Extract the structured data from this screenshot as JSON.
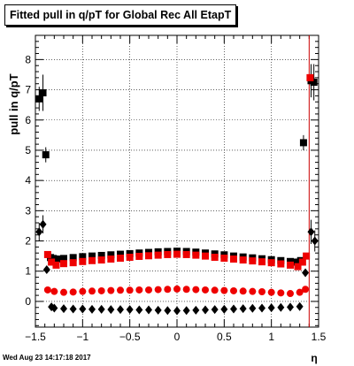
{
  "chart_data": {
    "type": "scatter",
    "title": "Fitted pull in q/pT for Global Rec All EtapT",
    "xlabel": "η",
    "ylabel": "pull in q/pT",
    "xlim": [
      -1.5,
      1.5
    ],
    "ylim": [
      -0.85,
      8.8
    ],
    "grid": true,
    "x_ticks": [
      -1.5,
      -1,
      -0.5,
      0,
      0.5,
      1,
      1.5
    ],
    "x_tick_labels": [
      "−1.5",
      "−1",
      "−0.5",
      "0",
      "0.5",
      "1",
      "1.5"
    ],
    "y_ticks": [
      0,
      1,
      2,
      3,
      4,
      5,
      6,
      7,
      8
    ],
    "y_tick_labels": [
      "0",
      "1",
      "2",
      "3",
      "4",
      "5",
      "6",
      "7",
      "8"
    ],
    "vertical_line": {
      "x": 1.4,
      "color": "#cc0000"
    },
    "series": [
      {
        "marker": "square",
        "color": "#000000",
        "points": [
          [
            -1.46,
            6.7
          ],
          [
            -1.42,
            6.9
          ],
          [
            -1.39,
            4.85
          ],
          [
            -1.34,
            1.45
          ],
          [
            -1.31,
            1.42
          ],
          [
            -1.27,
            1.4
          ],
          [
            -1.2,
            1.42
          ],
          [
            -1.1,
            1.45
          ],
          [
            -1.0,
            1.48
          ],
          [
            -0.9,
            1.5
          ],
          [
            -0.8,
            1.52
          ],
          [
            -0.7,
            1.54
          ],
          [
            -0.6,
            1.56
          ],
          [
            -0.5,
            1.58
          ],
          [
            -0.4,
            1.6
          ],
          [
            -0.3,
            1.62
          ],
          [
            -0.2,
            1.64
          ],
          [
            -0.1,
            1.65
          ],
          [
            0.0,
            1.66
          ],
          [
            0.1,
            1.65
          ],
          [
            0.2,
            1.63
          ],
          [
            0.3,
            1.6
          ],
          [
            0.4,
            1.57
          ],
          [
            0.5,
            1.54
          ],
          [
            0.6,
            1.5
          ],
          [
            0.7,
            1.47
          ],
          [
            0.8,
            1.44
          ],
          [
            0.9,
            1.41
          ],
          [
            1.0,
            1.38
          ],
          [
            1.1,
            1.35
          ],
          [
            1.2,
            1.32
          ],
          [
            1.27,
            1.3
          ],
          [
            1.31,
            1.35
          ],
          [
            1.34,
            5.25
          ],
          [
            1.42,
            7.3
          ],
          [
            1.45,
            7.25
          ]
        ]
      },
      {
        "marker": "square",
        "color": "#ee0000",
        "points": [
          [
            -1.37,
            1.55
          ],
          [
            -1.33,
            1.3
          ],
          [
            -1.28,
            1.2
          ],
          [
            -1.2,
            1.25
          ],
          [
            -1.1,
            1.28
          ],
          [
            -1.0,
            1.32
          ],
          [
            -0.9,
            1.35
          ],
          [
            -0.8,
            1.37
          ],
          [
            -0.7,
            1.4
          ],
          [
            -0.6,
            1.43
          ],
          [
            -0.5,
            1.46
          ],
          [
            -0.4,
            1.49
          ],
          [
            -0.3,
            1.51
          ],
          [
            -0.2,
            1.53
          ],
          [
            -0.1,
            1.55
          ],
          [
            0.0,
            1.56
          ],
          [
            0.1,
            1.55
          ],
          [
            0.2,
            1.53
          ],
          [
            0.3,
            1.5
          ],
          [
            0.4,
            1.46
          ],
          [
            0.5,
            1.43
          ],
          [
            0.6,
            1.4
          ],
          [
            0.7,
            1.37
          ],
          [
            0.8,
            1.34
          ],
          [
            0.9,
            1.31
          ],
          [
            1.0,
            1.28
          ],
          [
            1.1,
            1.24
          ],
          [
            1.2,
            1.2
          ],
          [
            1.28,
            1.15
          ],
          [
            1.33,
            1.3
          ],
          [
            1.37,
            1.5
          ],
          [
            1.41,
            7.4
          ]
        ]
      },
      {
        "marker": "circle",
        "color": "#ee0000",
        "points": [
          [
            -1.37,
            0.38
          ],
          [
            -1.3,
            0.33
          ],
          [
            -1.2,
            0.3
          ],
          [
            -1.1,
            0.31
          ],
          [
            -1.0,
            0.33
          ],
          [
            -0.9,
            0.34
          ],
          [
            -0.8,
            0.35
          ],
          [
            -0.7,
            0.36
          ],
          [
            -0.6,
            0.37
          ],
          [
            -0.5,
            0.37
          ],
          [
            -0.4,
            0.38
          ],
          [
            -0.3,
            0.38
          ],
          [
            -0.2,
            0.39
          ],
          [
            -0.1,
            0.4
          ],
          [
            0.0,
            0.41
          ],
          [
            0.1,
            0.4
          ],
          [
            0.2,
            0.39
          ],
          [
            0.3,
            0.38
          ],
          [
            0.4,
            0.37
          ],
          [
            0.5,
            0.36
          ],
          [
            0.6,
            0.35
          ],
          [
            0.7,
            0.34
          ],
          [
            0.8,
            0.33
          ],
          [
            0.9,
            0.32
          ],
          [
            1.0,
            0.3
          ],
          [
            1.1,
            0.28
          ],
          [
            1.2,
            0.26
          ],
          [
            1.3,
            0.3
          ],
          [
            1.36,
            0.4
          ]
        ]
      },
      {
        "marker": "diamond",
        "color": "#000000",
        "points": [
          [
            -1.46,
            2.3
          ],
          [
            -1.42,
            2.55
          ],
          [
            -1.38,
            1.05
          ],
          [
            -1.33,
            -0.18
          ],
          [
            -1.3,
            -0.22
          ],
          [
            -1.2,
            -0.24
          ],
          [
            -1.1,
            -0.25
          ],
          [
            -1.0,
            -0.25
          ],
          [
            -0.9,
            -0.26
          ],
          [
            -0.8,
            -0.26
          ],
          [
            -0.7,
            -0.27
          ],
          [
            -0.6,
            -0.27
          ],
          [
            -0.5,
            -0.27
          ],
          [
            -0.4,
            -0.28
          ],
          [
            -0.3,
            -0.28
          ],
          [
            -0.2,
            -0.29
          ],
          [
            -0.1,
            -0.3
          ],
          [
            0.0,
            -0.31
          ],
          [
            0.1,
            -0.3
          ],
          [
            0.2,
            -0.29
          ],
          [
            0.3,
            -0.28
          ],
          [
            0.4,
            -0.27
          ],
          [
            0.5,
            -0.26
          ],
          [
            0.6,
            -0.25
          ],
          [
            0.7,
            -0.24
          ],
          [
            0.8,
            -0.23
          ],
          [
            0.9,
            -0.22
          ],
          [
            1.0,
            -0.21
          ],
          [
            1.1,
            -0.2
          ],
          [
            1.2,
            -0.19
          ],
          [
            1.3,
            -0.17
          ],
          [
            1.36,
            0.95
          ],
          [
            1.42,
            2.3
          ],
          [
            1.46,
            2.0
          ]
        ]
      }
    ],
    "error_bars": [
      {
        "x": -1.46,
        "y": 6.7,
        "err": 0.4
      },
      {
        "x": -1.42,
        "y": 6.9,
        "err": 0.6
      },
      {
        "x": -1.39,
        "y": 4.85,
        "err": 0.25
      },
      {
        "x": -1.46,
        "y": 2.3,
        "err": 0.3
      },
      {
        "x": -1.42,
        "y": 2.55,
        "err": 0.3
      },
      {
        "x": 1.34,
        "y": 5.25,
        "err": 0.25
      },
      {
        "x": 1.42,
        "y": 7.3,
        "err": 0.55
      },
      {
        "x": 1.45,
        "y": 7.25,
        "err": 0.6
      },
      {
        "x": 1.42,
        "y": 2.3,
        "err": 0.4
      },
      {
        "x": 1.46,
        "y": 2.0,
        "err": 0.35
      }
    ]
  },
  "footer": {
    "timestamp": "Wed Aug 23 14:17:18 2017"
  }
}
